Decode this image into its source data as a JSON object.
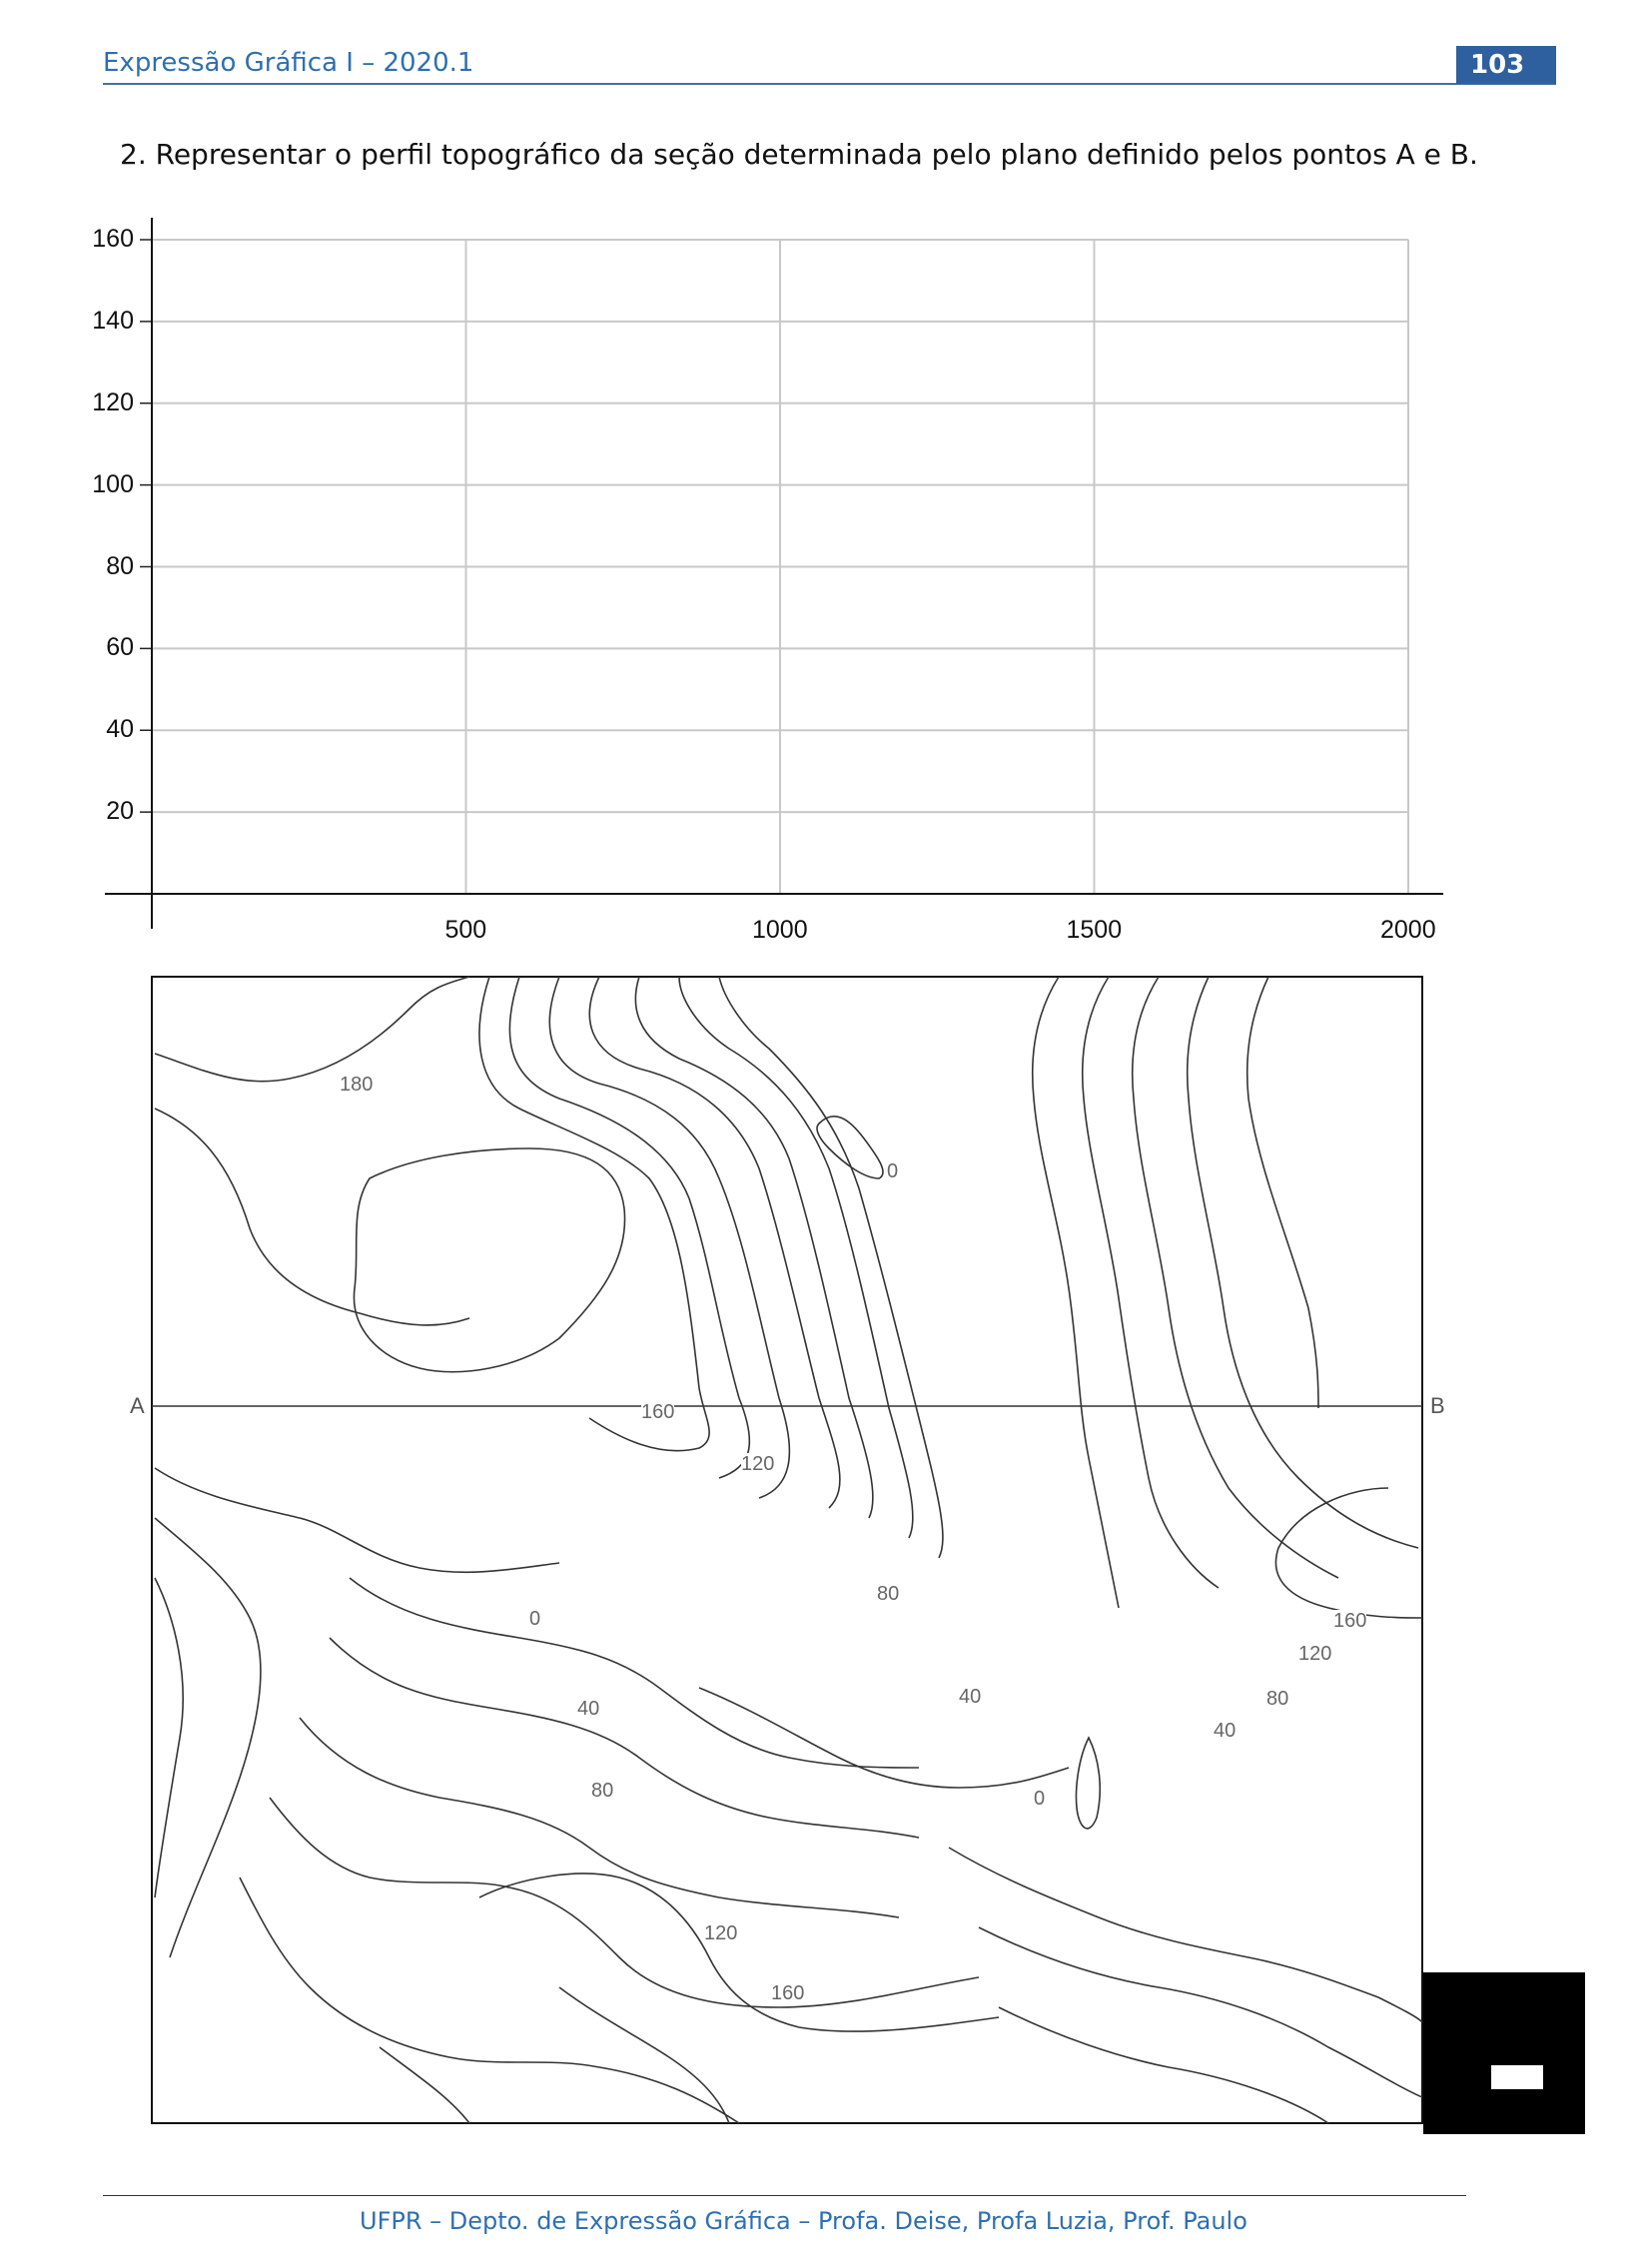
{
  "header": {
    "title": "Expressão Gráfica I – 2020.1",
    "page_number": "103"
  },
  "question": "2. Representar o perfil topográfico da seção determinada pelo plano definido pelos pontos A e B.",
  "chart_data": {
    "type": "line",
    "title": "",
    "xlabel": "",
    "ylabel": "",
    "x_ticks": [
      "500",
      "1000",
      "1500",
      "2000"
    ],
    "y_ticks": [
      "160",
      "140",
      "120",
      "100",
      "80",
      "60",
      "40",
      "20"
    ],
    "xlim": [
      0,
      2000
    ],
    "ylim": [
      0,
      160
    ],
    "grid": true,
    "series": []
  },
  "map": {
    "point_a": "A",
    "point_b": "B",
    "contour_labels": [
      "180",
      "0",
      "160",
      "120",
      "80",
      "0",
      "40",
      "40",
      "80",
      "0",
      "120",
      "160",
      "160",
      "120",
      "80",
      "40"
    ]
  },
  "footer": {
    "text": "UFPR – Depto. de Expressão Gráfica – Profa. Deise, Profa Luzia, Prof. Paulo"
  }
}
